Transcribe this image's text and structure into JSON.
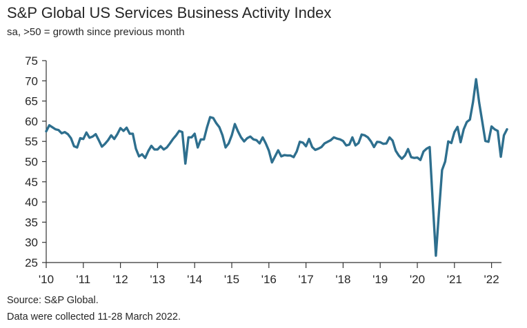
{
  "chart_data": {
    "type": "line",
    "title": "S&P Global US Services Business Activity Index",
    "subtitle": "sa, >50 = growth since previous month",
    "xlabel": "",
    "ylabel": "",
    "ylim": [
      25,
      75
    ],
    "y_ticks": [
      25,
      30,
      35,
      40,
      45,
      50,
      55,
      60,
      65,
      70,
      75
    ],
    "x_ticks": [
      "'10",
      "'11",
      "'12",
      "'13",
      "'14",
      "'15",
      "'16",
      "'17",
      "'18",
      "'19",
      "'20",
      "'21",
      "'22"
    ],
    "grid": false,
    "series": [
      {
        "name": "Business Activity Index",
        "color": "#2e6f8e",
        "x_start": "2010-01",
        "frequency": "monthly",
        "values": [
          57.5,
          59.0,
          58.5,
          58.0,
          57.8,
          57.0,
          57.3,
          56.8,
          55.8,
          53.8,
          53.5,
          55.8,
          55.6,
          57.2,
          55.9,
          56.2,
          56.8,
          55.3,
          53.7,
          54.4,
          55.3,
          56.5,
          55.6,
          56.8,
          58.3,
          57.6,
          58.4,
          56.9,
          56.9,
          53.2,
          51.3,
          51.8,
          50.9,
          52.6,
          53.9,
          53.0,
          53.0,
          53.8,
          53.0,
          53.5,
          54.5,
          55.6,
          56.5,
          57.6,
          57.3,
          49.5,
          56.0,
          56.0,
          56.9,
          53.5,
          55.5,
          55.5,
          58.5,
          61.0,
          60.8,
          59.5,
          58.5,
          56.5,
          53.5,
          54.5,
          56.5,
          59.3,
          57.5,
          56.0,
          55.0,
          55.8,
          56.2,
          55.5,
          55.3,
          54.5,
          56.0,
          54.5,
          52.7,
          49.8,
          51.3,
          52.8,
          51.3,
          51.6,
          51.5,
          51.5,
          51.1,
          52.5,
          54.9,
          54.7,
          53.8,
          55.6,
          53.6,
          52.9,
          53.2,
          53.6,
          54.5,
          54.9,
          55.3,
          56.0,
          55.7,
          55.5,
          55.1,
          54.0,
          54.2,
          56.0,
          54.0,
          54.6,
          56.7,
          56.5,
          56.0,
          55.0,
          53.6,
          54.9,
          54.8,
          54.4,
          54.5,
          56.0,
          55.2,
          52.7,
          51.5,
          50.7,
          51.5,
          53.1,
          51.1,
          50.9,
          51.0,
          50.4,
          52.5,
          53.2,
          53.6,
          39.8,
          26.7,
          37.5,
          47.9,
          50.0,
          55.0,
          54.6,
          57.3,
          58.6,
          54.8,
          58.0,
          59.8,
          60.4,
          64.7,
          70.4,
          64.6,
          59.9,
          55.1,
          54.9,
          58.7,
          58.0,
          57.6,
          51.2,
          56.5,
          58.0
        ]
      }
    ]
  },
  "footer": {
    "source": "Source: S&P Global.",
    "note": "Data were collected 11-28 March 2022."
  }
}
